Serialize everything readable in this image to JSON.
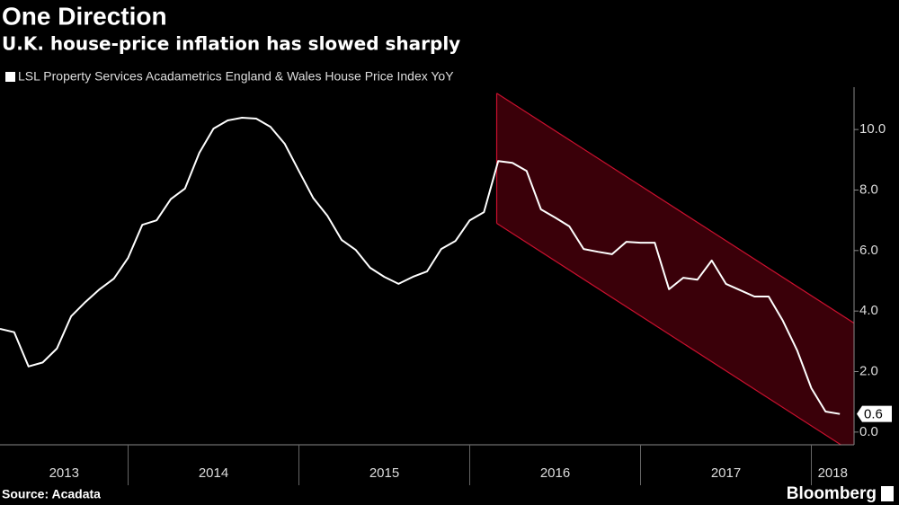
{
  "chart_data": {
    "type": "line",
    "title": "One Direction",
    "subtitle": "U.K. house-price inflation has slowed sharply",
    "source": "Source: Acadata",
    "brand": "Bloomberg",
    "series": [
      {
        "name": "LSL Property Services Acadametrics England & Wales House Price Index YoY",
        "color": "#ffffff",
        "x": [
          2013.25,
          2013.333,
          2013.417,
          2013.5,
          2013.583,
          2013.667,
          2013.75,
          2013.833,
          2013.917,
          2014.0,
          2014.083,
          2014.167,
          2014.25,
          2014.333,
          2014.417,
          2014.5,
          2014.583,
          2014.667,
          2014.75,
          2014.833,
          2014.917,
          2015.0,
          2015.083,
          2015.167,
          2015.25,
          2015.333,
          2015.417,
          2015.5,
          2015.583,
          2015.667,
          2015.75,
          2015.833,
          2015.917,
          2016.0,
          2016.083,
          2016.167,
          2016.25,
          2016.333,
          2016.417,
          2016.5,
          2016.583,
          2016.667,
          2016.75,
          2016.833,
          2016.917,
          2017.0,
          2017.083,
          2017.167,
          2017.25,
          2017.333,
          2017.417,
          2017.5,
          2017.583,
          2017.667,
          2017.75,
          2017.833,
          2017.917,
          2018.0,
          2018.083,
          2018.167
        ],
        "values": [
          3.41,
          3.3,
          2.17,
          2.3,
          2.76,
          3.83,
          4.3,
          4.72,
          5.07,
          5.76,
          6.85,
          7.0,
          7.7,
          8.05,
          9.23,
          10.03,
          10.3,
          10.39,
          10.36,
          10.09,
          9.53,
          8.63,
          7.74,
          7.15,
          6.35,
          6.02,
          5.43,
          5.13,
          4.9,
          5.13,
          5.31,
          6.05,
          6.32,
          7.0,
          7.27,
          8.96,
          8.9,
          8.63,
          7.36,
          7.09,
          6.8,
          6.05,
          5.96,
          5.88,
          6.29,
          6.26,
          6.26,
          4.72,
          5.1,
          5.04,
          5.67,
          4.9,
          4.69,
          4.48,
          4.48,
          3.68,
          2.7,
          1.45,
          0.68,
          0.6
        ],
        "last_value_label": "0.6"
      }
    ],
    "channel": {
      "color": "#c8102e",
      "fill": "#3a0009",
      "x": [
        2016.158,
        2018.25
      ],
      "upper": [
        11.2,
        3.6
      ],
      "lower": [
        6.9,
        -0.7
      ]
    },
    "xlim": [
      2013.25,
      2018.25
    ],
    "year_labels": [
      2013,
      2014,
      2015,
      2016,
      2017,
      2018
    ],
    "ylim": [
      -0.42,
      11.4
    ],
    "yticks": [
      {
        "value": 0,
        "label": "0.0"
      },
      {
        "value": 2,
        "label": "2.0"
      },
      {
        "value": 4,
        "label": "4.0"
      },
      {
        "value": 6,
        "label": "6.0"
      },
      {
        "value": 8,
        "label": "8.0"
      },
      {
        "value": 10,
        "label": "10.0"
      }
    ],
    "y_axis_side": "right"
  }
}
